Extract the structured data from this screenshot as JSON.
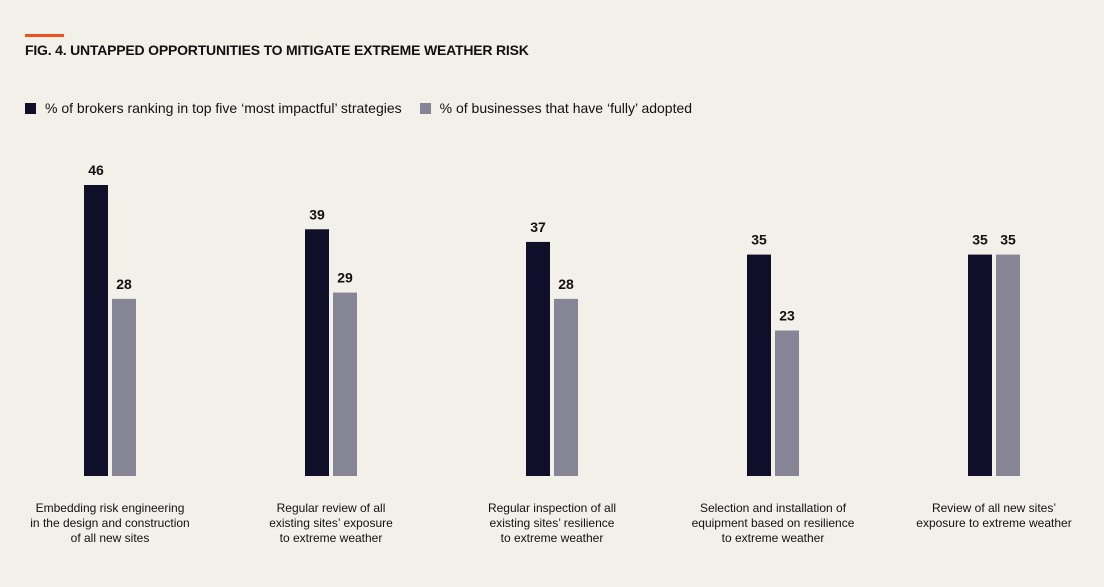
{
  "chart_data": {
    "type": "bar",
    "title": "FIG. 4. UNTAPPED OPPORTUNITIES TO MITIGATE EXTREME WEATHER RISK",
    "categories": [
      "Embedding risk engineering\nin the design and construction\nof all new sites",
      "Regular review of all\nexisting sites’ exposure\nto extreme weather",
      "Regular inspection of all\nexisting  sites’ resilience\nto extreme weather",
      "Selection and installation of\nequipment based on resilience\nto extreme weather",
      "Review of all new sites’\nexposure to extreme weather"
    ],
    "series": [
      {
        "name": "% of brokers ranking in top five ‘most impactful’ strategies",
        "color": "#0f0f2a",
        "values": [
          46,
          39,
          37,
          35,
          35
        ]
      },
      {
        "name": "% of businesses that have ‘fully’ adopted",
        "color": "#868596",
        "values": [
          28,
          29,
          28,
          23,
          35
        ]
      }
    ],
    "xlabel": "",
    "ylabel": "",
    "grid": false,
    "legend": "top-left",
    "accent_color": "#f0501e"
  }
}
